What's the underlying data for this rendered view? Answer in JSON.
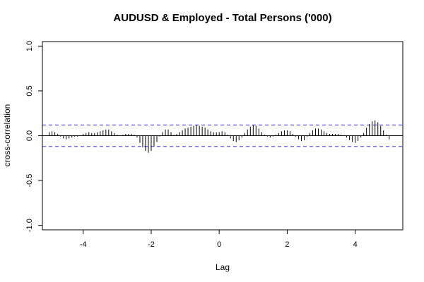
{
  "chart_data": {
    "type": "bar",
    "title": "AUDUSD & Employed - Total Persons ('000)",
    "xlabel": "Lag",
    "ylabel": "cross-correlation",
    "xlim": [
      -5.2,
      5.4
    ],
    "ylim": [
      -1.05,
      1.05
    ],
    "xticks": [
      -4,
      -2,
      0,
      2,
      4
    ],
    "yticks": [
      -1.0,
      -0.5,
      0.0,
      0.5,
      1.0
    ],
    "confidence_bounds": [
      0.12,
      -0.12
    ],
    "colors": {
      "bars": "#000000",
      "bounds": "#3b3bdb",
      "zero_line": "#000000"
    },
    "grid": false,
    "lag_step": 0.08333,
    "lags": [
      -5.0,
      -4.917,
      -4.833,
      -4.75,
      -4.667,
      -4.583,
      -4.5,
      -4.417,
      -4.333,
      -4.25,
      -4.167,
      -4.083,
      -4.0,
      -3.917,
      -3.833,
      -3.75,
      -3.667,
      -3.583,
      -3.5,
      -3.417,
      -3.333,
      -3.25,
      -3.167,
      -3.083,
      -3.0,
      -2.917,
      -2.833,
      -2.75,
      -2.667,
      -2.583,
      -2.5,
      -2.417,
      -2.333,
      -2.25,
      -2.167,
      -2.083,
      -2.0,
      -1.917,
      -1.833,
      -1.75,
      -1.667,
      -1.583,
      -1.5,
      -1.417,
      -1.333,
      -1.25,
      -1.167,
      -1.083,
      -1.0,
      -0.917,
      -0.833,
      -0.75,
      -0.667,
      -0.583,
      -0.5,
      -0.417,
      -0.333,
      -0.25,
      -0.167,
      -0.083,
      0.0,
      0.083,
      0.167,
      0.25,
      0.333,
      0.417,
      0.5,
      0.583,
      0.667,
      0.75,
      0.833,
      0.917,
      1.0,
      1.083,
      1.167,
      1.25,
      1.333,
      1.417,
      1.5,
      1.583,
      1.667,
      1.75,
      1.833,
      1.917,
      2.0,
      2.083,
      2.167,
      2.25,
      2.333,
      2.417,
      2.5,
      2.583,
      2.667,
      2.75,
      2.833,
      2.917,
      3.0,
      3.083,
      3.167,
      3.25,
      3.333,
      3.417,
      3.5,
      3.583,
      3.667,
      3.75,
      3.833,
      3.917,
      4.0,
      4.083,
      4.167,
      4.25,
      4.333,
      4.417,
      4.5,
      4.583,
      4.667,
      4.75,
      4.833,
      4.917,
      5.0
    ],
    "values": [
      0.04,
      0.05,
      0.04,
      0.02,
      -0.01,
      -0.03,
      -0.04,
      -0.03,
      -0.02,
      -0.01,
      -0.01,
      0.0,
      0.02,
      0.03,
      0.04,
      0.03,
      0.03,
      0.04,
      0.05,
      0.06,
      0.07,
      0.07,
      0.05,
      0.03,
      0.01,
      0.0,
      0.01,
      0.02,
      0.02,
      0.02,
      0.01,
      -0.02,
      -0.08,
      -0.13,
      -0.17,
      -0.19,
      -0.17,
      -0.12,
      -0.07,
      -0.01,
      0.04,
      0.07,
      0.07,
      0.04,
      0.01,
      0.02,
      0.04,
      0.06,
      0.08,
      0.09,
      0.1,
      0.11,
      0.12,
      0.11,
      0.1,
      0.09,
      0.07,
      0.05,
      0.04,
      0.04,
      0.04,
      0.05,
      0.04,
      0.01,
      -0.03,
      -0.06,
      -0.07,
      -0.05,
      -0.02,
      0.03,
      0.07,
      0.1,
      0.12,
      0.11,
      0.08,
      0.04,
      0.01,
      -0.01,
      -0.02,
      -0.01,
      0.01,
      0.03,
      0.05,
      0.06,
      0.06,
      0.05,
      0.02,
      -0.01,
      -0.04,
      -0.06,
      -0.05,
      -0.01,
      0.03,
      0.06,
      0.08,
      0.08,
      0.07,
      0.05,
      0.03,
      0.02,
      0.02,
      0.02,
      0.02,
      0.01,
      0.0,
      -0.02,
      -0.05,
      -0.07,
      -0.08,
      -0.06,
      -0.02,
      0.03,
      0.09,
      0.13,
      0.16,
      0.17,
      0.15,
      0.11,
      0.06,
      0.01,
      -0.04
    ]
  }
}
